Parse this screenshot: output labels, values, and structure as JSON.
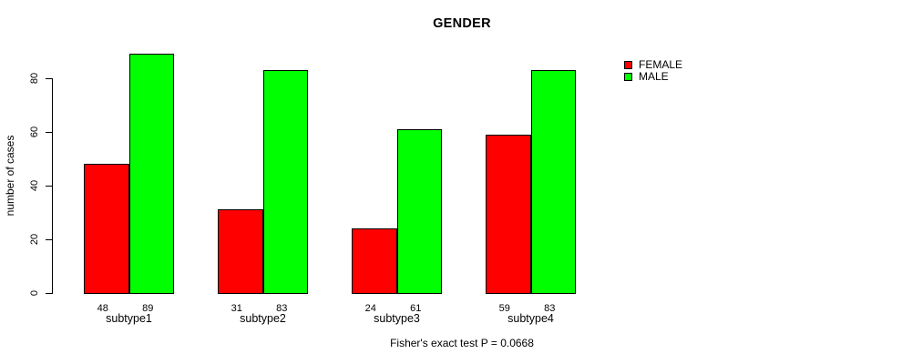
{
  "chart_data": {
    "type": "bar",
    "title": "GENDER",
    "ylabel": "number of cases",
    "xlabel": "",
    "categories": [
      "subtype1",
      "subtype2",
      "subtype3",
      "subtype4"
    ],
    "series": [
      {
        "name": "FEMALE",
        "color": "#ff0000",
        "values": [
          48,
          31,
          24,
          59
        ]
      },
      {
        "name": "MALE",
        "color": "#00ff00",
        "values": [
          89,
          83,
          61,
          83
        ]
      }
    ],
    "bar_value_labels": [
      [
        48,
        89
      ],
      [
        31,
        83
      ],
      [
        24,
        61
      ],
      [
        59,
        83
      ]
    ],
    "yticks": [
      0,
      20,
      40,
      60,
      80
    ],
    "ylim": [
      0,
      89
    ],
    "grid": false,
    "legend_position": "right-inside",
    "legend_entries": [
      "FEMALE",
      "MALE"
    ],
    "annotation": "Fisher's exact test P = 0.0668",
    "bar_border_color": "#000000",
    "background_color": "#ffffff"
  }
}
